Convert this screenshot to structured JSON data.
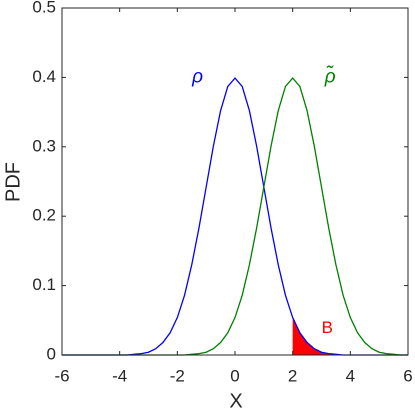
{
  "chart_data": {
    "type": "line",
    "x_label": "X",
    "y_label": "PDF",
    "x": [
      -6,
      -5.75,
      -5.5,
      -5.25,
      -5,
      -4.75,
      -4.5,
      -4.25,
      -4,
      -3.75,
      -3.5,
      -3.25,
      -3,
      -2.75,
      -2.5,
      -2.25,
      -2,
      -1.75,
      -1.5,
      -1.25,
      -1,
      -0.75,
      -0.5,
      -0.25,
      0,
      0.25,
      0.5,
      0.75,
      1,
      1.25,
      1.5,
      1.75,
      2,
      2.25,
      2.5,
      2.75,
      3,
      3.25,
      3.5,
      3.75,
      4,
      4.25,
      4.5,
      4.75,
      5,
      5.25,
      5.5,
      5.75,
      6
    ],
    "series": [
      {
        "name": "ρ",
        "color": "#0000ff",
        "values": [
          0,
          0,
          0,
          0,
          0,
          0,
          0,
          0,
          0,
          0,
          0.001,
          0.002,
          0.004,
          0.009,
          0.018,
          0.032,
          0.054,
          0.086,
          0.13,
          0.183,
          0.242,
          0.301,
          0.352,
          0.387,
          0.399,
          0.387,
          0.352,
          0.301,
          0.242,
          0.183,
          0.13,
          0.086,
          0.054,
          0.032,
          0.018,
          0.009,
          0.004,
          0.002,
          0.001,
          0,
          0,
          0,
          0,
          0,
          0,
          0,
          0,
          0,
          0
        ]
      },
      {
        "name": "ρ̃",
        "color": "#008000",
        "values": [
          0,
          0,
          0,
          0,
          0,
          0,
          0,
          0,
          0,
          0,
          0,
          0,
          0,
          0,
          0,
          0,
          0,
          0,
          0.001,
          0.002,
          0.004,
          0.009,
          0.018,
          0.032,
          0.054,
          0.086,
          0.13,
          0.183,
          0.242,
          0.301,
          0.352,
          0.387,
          0.399,
          0.387,
          0.352,
          0.301,
          0.242,
          0.183,
          0.13,
          0.086,
          0.054,
          0.032,
          0.018,
          0.009,
          0.004,
          0.002,
          0.001,
          0,
          0
        ]
      }
    ],
    "shaded_area": {
      "label": "B",
      "color": "#ff0000",
      "x_from": 2
    },
    "xlim": [
      -6,
      6
    ],
    "xticks": [
      -6,
      -4,
      -2,
      0,
      2,
      4,
      6
    ],
    "ylim": [
      0,
      0.5
    ],
    "yticks": [
      0,
      0.1,
      0.2,
      0.3,
      0.4,
      0.5
    ],
    "grid": false
  }
}
